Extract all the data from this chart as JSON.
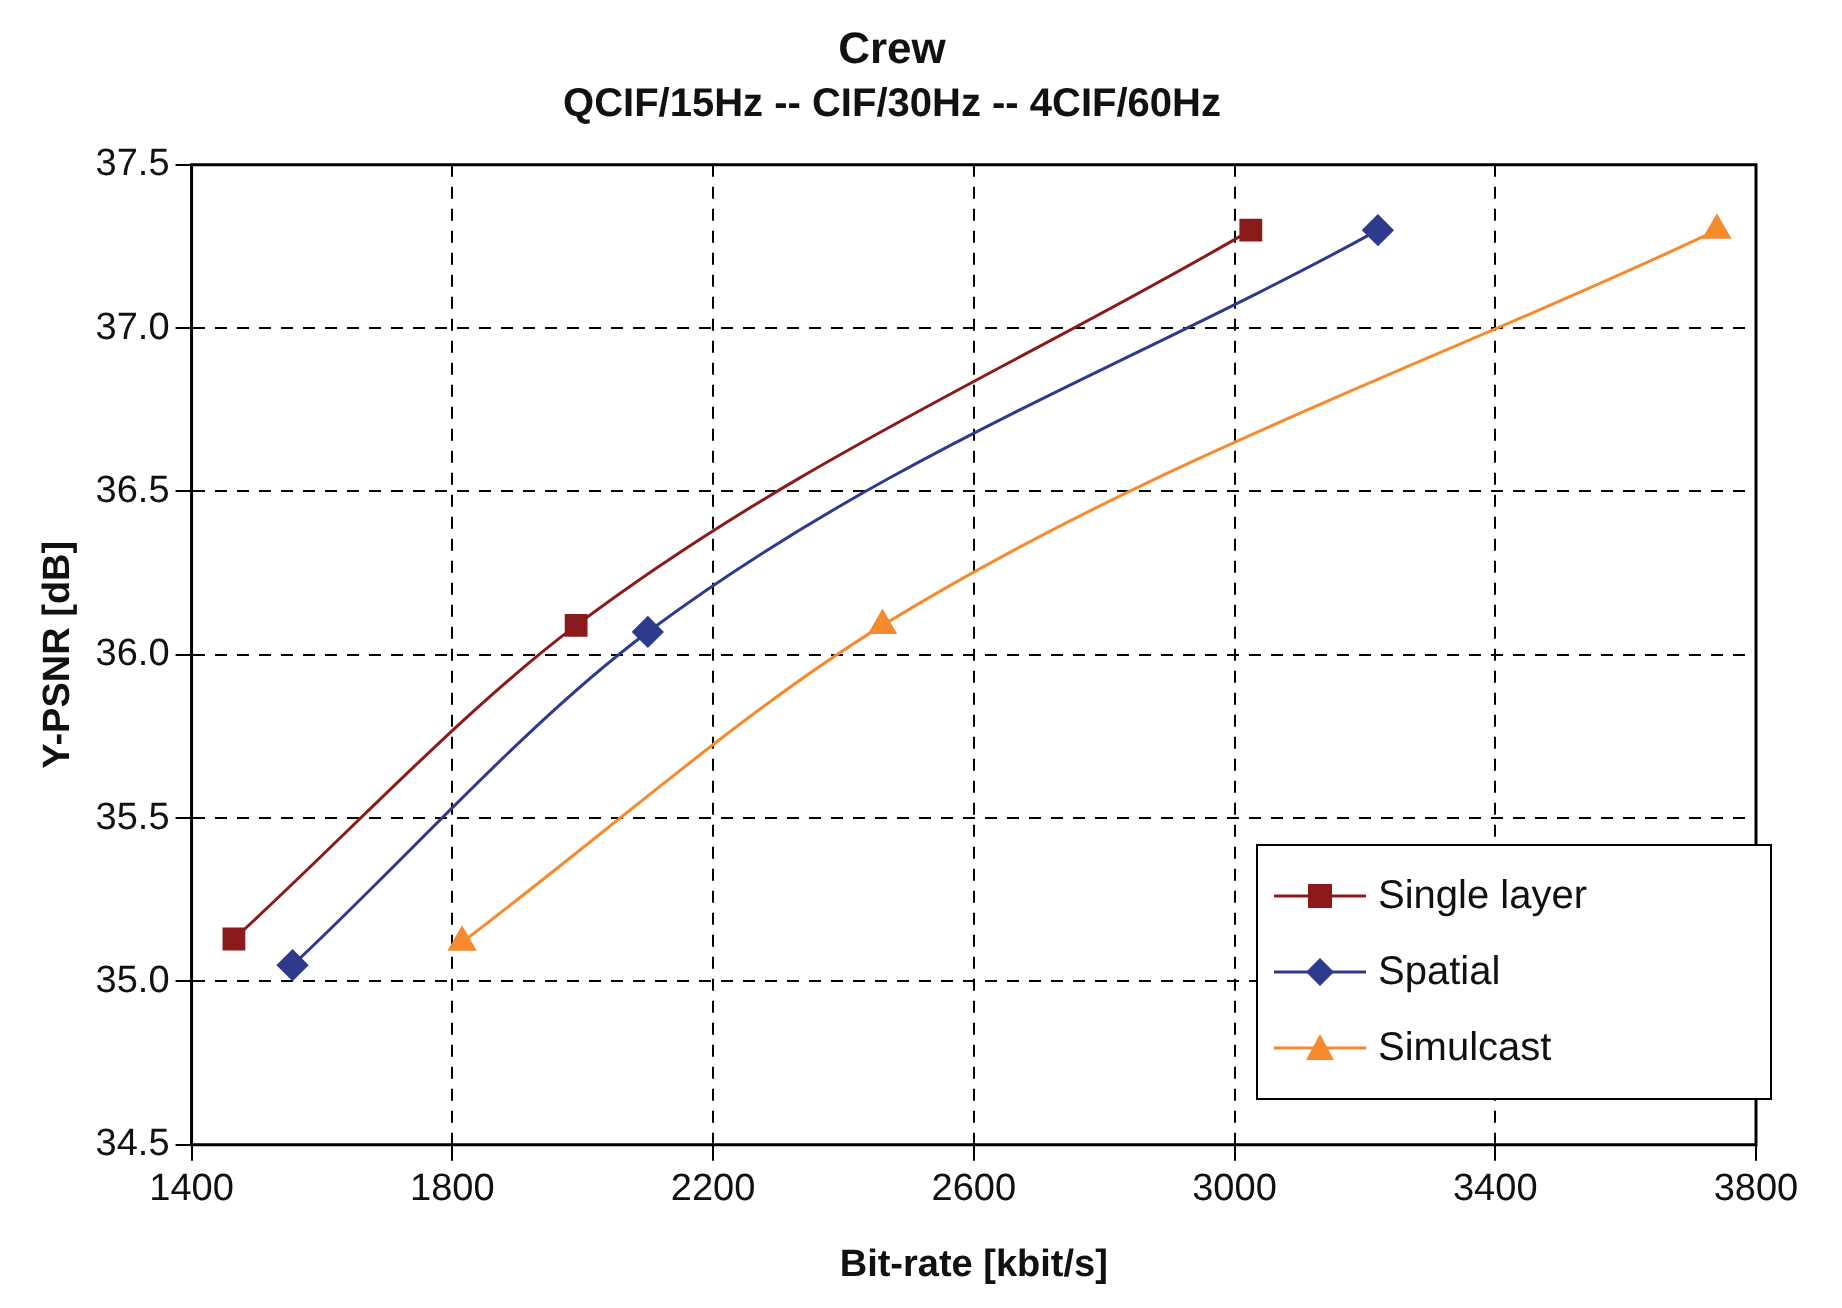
{
  "chart_data": {
    "type": "line",
    "title": "Crew",
    "subtitle": "QCIF/15Hz -- CIF/30Hz -- 4CIF/60Hz",
    "xlabel": "Bit-rate [kbit/s]",
    "ylabel": "Y-PSNR [dB]",
    "series": [
      {
        "name": "Single layer",
        "color": "#8b1a1a",
        "marker": "square",
        "x": [
          1465,
          1990,
          3025
        ],
        "values": [
          35.13,
          36.09,
          37.3
        ]
      },
      {
        "name": "Spatial",
        "color": "#2e3a8c",
        "marker": "diamond",
        "x": [
          1555,
          2100,
          3220
        ],
        "values": [
          35.05,
          36.07,
          37.3
        ]
      },
      {
        "name": "Simulcast",
        "color": "#f58a2e",
        "marker": "triangle",
        "x": [
          1815,
          2460,
          3740
        ],
        "values": [
          35.12,
          36.09,
          37.3
        ]
      }
    ],
    "xlim": [
      1400,
      3800
    ],
    "xticks": [
      1400,
      1800,
      2200,
      2600,
      3000,
      3400,
      3800
    ],
    "ylim": [
      34.5,
      37.5
    ],
    "yticks": [
      34.5,
      {
        "value": 35,
        "label": "35.0"
      },
      35.5,
      {
        "value": 36,
        "label": "36.0"
      },
      36.5,
      {
        "value": 37,
        "label": "37.0"
      },
      37.5
    ],
    "grid": true,
    "legend": "bottom right",
    "line_style": "solid"
  }
}
